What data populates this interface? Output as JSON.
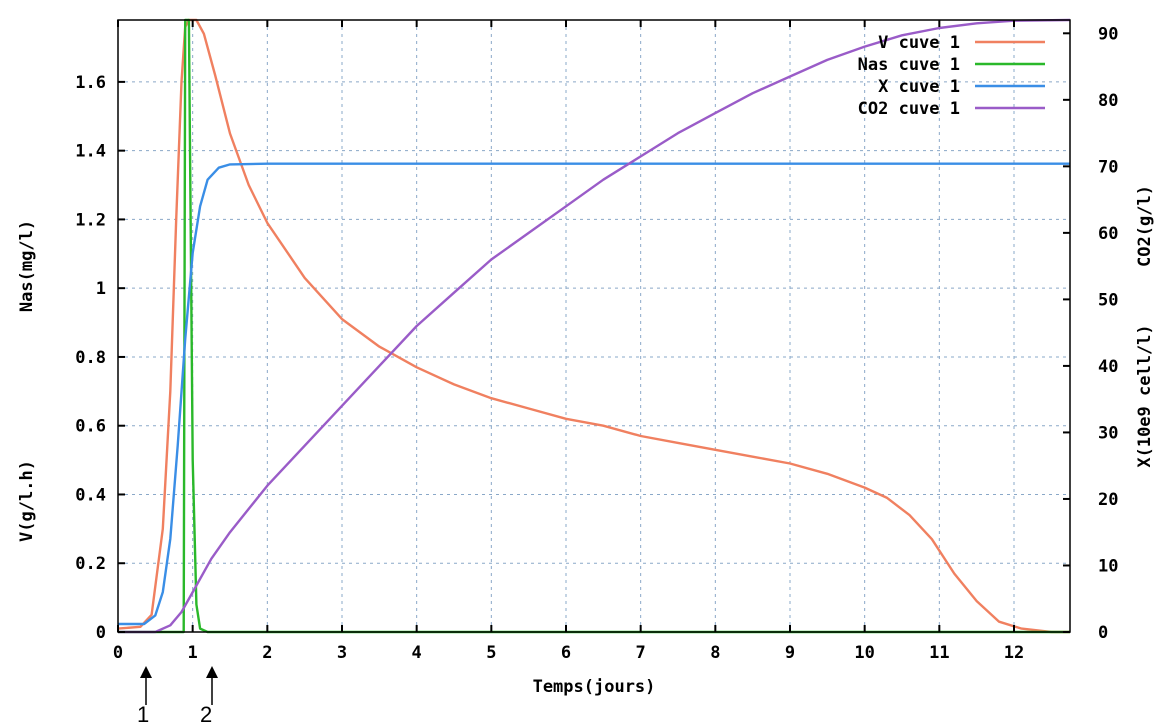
{
  "chart_data": {
    "type": "line",
    "xlabel": "Temps(jours)",
    "ylabel_left": [
      "V(g/l.h)",
      "Nas(mg/l)"
    ],
    "ylabel_right": [
      "X(10e9 cell/l)",
      "CO2(g/l)"
    ],
    "xlim": [
      0,
      12.75
    ],
    "ylim_left": [
      0,
      1.78
    ],
    "ylim_right": [
      0,
      92
    ],
    "x_ticks": [
      0,
      1,
      2,
      3,
      4,
      5,
      6,
      7,
      8,
      9,
      10,
      11,
      12
    ],
    "y_ticks_left": [
      0,
      0.2,
      0.4,
      0.6,
      0.8,
      1,
      1.2,
      1.4,
      1.6
    ],
    "y_ticks_left_labels": [
      "0",
      "0.2",
      "0.4",
      "0.6",
      "0.8",
      "1",
      "1.2",
      "1.4",
      "1.6"
    ],
    "y_ticks_right": [
      0,
      10,
      20,
      30,
      40,
      50,
      60,
      70,
      80,
      90
    ],
    "grid": true,
    "legend_position": "top-right",
    "series": [
      {
        "name": "V cuve 1",
        "color": "#f08060",
        "axis": "left",
        "points": [
          [
            0,
            0.01
          ],
          [
            0.3,
            0.015
          ],
          [
            0.45,
            0.05
          ],
          [
            0.6,
            0.3
          ],
          [
            0.7,
            0.7
          ],
          [
            0.78,
            1.2
          ],
          [
            0.85,
            1.6
          ],
          [
            0.9,
            1.76
          ],
          [
            0.95,
            1.78
          ],
          [
            1.05,
            1.78
          ],
          [
            1.15,
            1.74
          ],
          [
            1.3,
            1.62
          ],
          [
            1.5,
            1.45
          ],
          [
            1.75,
            1.3
          ],
          [
            2,
            1.19
          ],
          [
            2.5,
            1.03
          ],
          [
            3,
            0.91
          ],
          [
            3.5,
            0.83
          ],
          [
            4,
            0.77
          ],
          [
            4.5,
            0.72
          ],
          [
            5,
            0.68
          ],
          [
            5.5,
            0.65
          ],
          [
            6,
            0.62
          ],
          [
            6.5,
            0.6
          ],
          [
            7,
            0.57
          ],
          [
            7.5,
            0.55
          ],
          [
            8,
            0.53
          ],
          [
            8.5,
            0.51
          ],
          [
            9,
            0.49
          ],
          [
            9.5,
            0.46
          ],
          [
            10,
            0.42
          ],
          [
            10.3,
            0.39
          ],
          [
            10.6,
            0.34
          ],
          [
            10.9,
            0.27
          ],
          [
            11.2,
            0.17
          ],
          [
            11.5,
            0.09
          ],
          [
            11.8,
            0.03
          ],
          [
            12.1,
            0.01
          ],
          [
            12.5,
            0.0
          ],
          [
            12.75,
            0.0
          ]
        ]
      },
      {
        "name": "Nas cuve 1",
        "color": "#2ab82a",
        "axis": "left",
        "points": [
          [
            0,
            0.0
          ],
          [
            0.88,
            0.0
          ],
          [
            0.9,
            1.78
          ],
          [
            0.95,
            1.78
          ],
          [
            1.0,
            0.5
          ],
          [
            1.05,
            0.08
          ],
          [
            1.1,
            0.01
          ],
          [
            1.2,
            0.0
          ],
          [
            12.75,
            0.0
          ]
        ]
      },
      {
        "name": "X cuve 1",
        "color": "#3a8ee6",
        "axis": "right",
        "points": [
          [
            0,
            1.2
          ],
          [
            0.35,
            1.2
          ],
          [
            0.5,
            2.5
          ],
          [
            0.6,
            6
          ],
          [
            0.7,
            14
          ],
          [
            0.8,
            28
          ],
          [
            0.9,
            44
          ],
          [
            1.0,
            57
          ],
          [
            1.1,
            64
          ],
          [
            1.2,
            68
          ],
          [
            1.35,
            69.8
          ],
          [
            1.5,
            70.3
          ],
          [
            2,
            70.4
          ],
          [
            12.75,
            70.4
          ]
        ]
      },
      {
        "name": "CO2 cuve 1",
        "color": "#9a5cc8",
        "axis": "right",
        "points": [
          [
            0,
            0
          ],
          [
            0.5,
            0
          ],
          [
            0.7,
            1
          ],
          [
            0.85,
            3
          ],
          [
            1,
            6
          ],
          [
            1.25,
            11
          ],
          [
            1.5,
            15
          ],
          [
            2,
            22
          ],
          [
            2.5,
            28
          ],
          [
            3,
            34
          ],
          [
            3.5,
            40
          ],
          [
            4,
            46
          ],
          [
            4.5,
            51
          ],
          [
            5,
            56
          ],
          [
            5.5,
            60
          ],
          [
            6,
            64
          ],
          [
            6.5,
            68
          ],
          [
            7,
            71.5
          ],
          [
            7.5,
            75
          ],
          [
            8,
            78
          ],
          [
            8.5,
            81
          ],
          [
            9,
            83.5
          ],
          [
            9.5,
            86
          ],
          [
            10,
            88
          ],
          [
            10.5,
            89.7
          ],
          [
            11,
            90.8
          ],
          [
            11.5,
            91.5
          ],
          [
            12,
            91.9
          ],
          [
            12.75,
            92
          ]
        ]
      }
    ]
  },
  "annotations": {
    "marker_1": "1",
    "marker_2": "2"
  }
}
